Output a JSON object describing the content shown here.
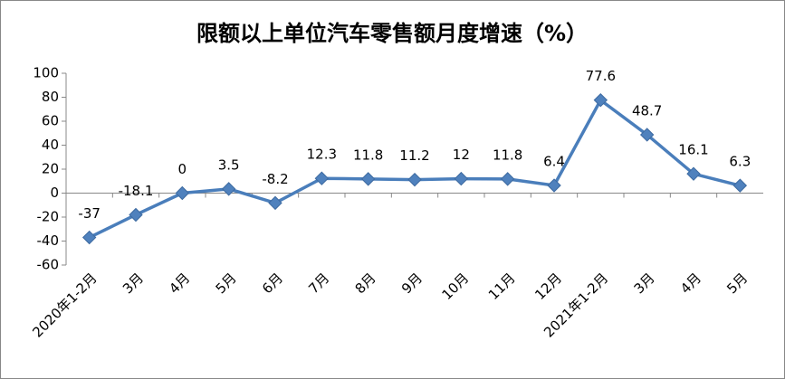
{
  "chart_data": {
    "type": "line",
    "title": "限额以上单位汽车零售额月度增速（%）",
    "categories": [
      "2020年1-2月",
      "3月",
      "4月",
      "5月",
      "6月",
      "7月",
      "8月",
      "9月",
      "10月",
      "11月",
      "12月",
      "2021年1-2月",
      "3月",
      "4月",
      "5月"
    ],
    "values": [
      -37,
      -18.1,
      0,
      3.5,
      -8.2,
      12.3,
      11.8,
      11.2,
      12,
      11.8,
      6.4,
      77.6,
      48.7,
      16.1,
      6.3
    ],
    "color": "#4a7ebb",
    "ylim": [
      -60,
      100
    ],
    "yticks": [
      -60,
      -40,
      -20,
      0,
      20,
      40,
      60,
      80,
      100
    ],
    "grid": false
  }
}
